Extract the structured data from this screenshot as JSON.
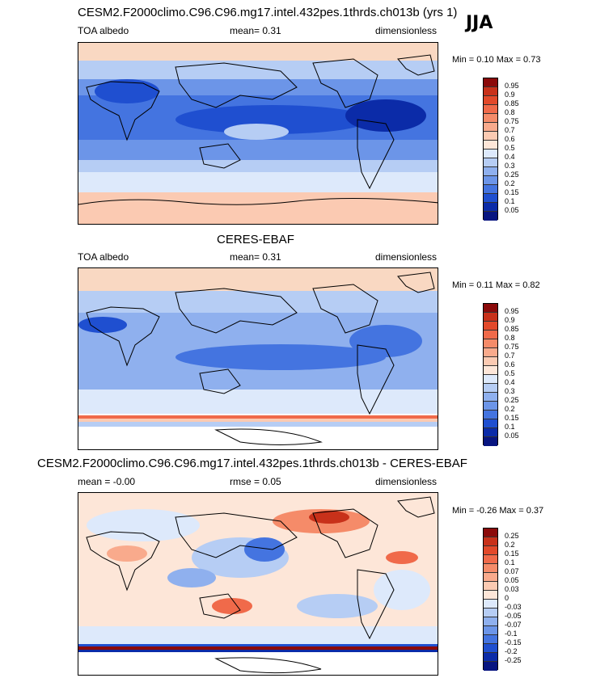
{
  "season": "JJA",
  "panel1": {
    "title": "CESM2.F2000climo.C96.C96.mg17.intel.432pes.1thrds.ch013b (yrs 1)",
    "left": "TOA albedo",
    "center": "mean=   0.31",
    "right": "dimensionless",
    "minmax": "Min =   0.10 Max =   0.73"
  },
  "panel2": {
    "title": "CERES-EBAF",
    "left": "TOA albedo",
    "center": "mean=   0.31",
    "right": "dimensionless",
    "minmax": "Min =   0.11 Max =   0.82"
  },
  "panel3": {
    "title": "CESM2.F2000climo.C96.C96.mg17.intel.432pes.1thrds.ch013b - CERES-EBAF",
    "left": "mean =   -0.00",
    "center": "rmse =   0.05",
    "right": "dimensionless",
    "minmax": "Min =  -0.26 Max =   0.37"
  },
  "colorbar_abs": {
    "labels": [
      "0.95",
      "0.9",
      "0.85",
      "0.8",
      "0.75",
      "0.7",
      "0.6",
      "0.5",
      "0.4",
      "0.3",
      "0.25",
      "0.2",
      "0.15",
      "0.1",
      "0.05"
    ],
    "colors": [
      "#8b0a0a",
      "#c8311a",
      "#e2492a",
      "#f06a4a",
      "#f58b69",
      "#f9aa8c",
      "#fbcab2",
      "#fde6d8",
      "#dde9fb",
      "#b6cdf4",
      "#8fb0ee",
      "#6c95e8",
      "#4474e0",
      "#1f4fd0",
      "#0b2ba8",
      "#081580"
    ]
  },
  "colorbar_diff": {
    "labels": [
      "0.25",
      "0.2",
      "0.15",
      "0.1",
      "0.07",
      "0.05",
      "0.03",
      "0",
      "-0.03",
      "-0.05",
      "-0.07",
      "-0.1",
      "-0.15",
      "-0.2",
      "-0.25"
    ],
    "colors": [
      "#8b0a0a",
      "#c8311a",
      "#e2492a",
      "#f06a4a",
      "#f58b69",
      "#f9aa8c",
      "#fbcab2",
      "#fde6d8",
      "#dde9fb",
      "#b6cdf4",
      "#8fb0ee",
      "#6c95e8",
      "#4474e0",
      "#1f4fd0",
      "#0b2ba8",
      "#081580"
    ]
  }
}
